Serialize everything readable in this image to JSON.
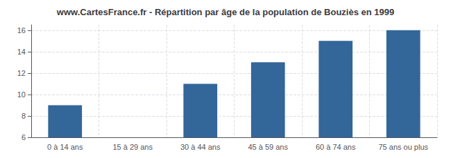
{
  "chart_data": {
    "type": "bar",
    "title": "www.CartesFrance.fr - Répartition par âge de la population de Bouziès en 1999",
    "categories": [
      "0 à 14 ans",
      "15 à 29 ans",
      "30 à 44 ans",
      "45 à 59 ans",
      "60 à 74 ans",
      "75 ans ou plus"
    ],
    "values": [
      9,
      6,
      11,
      13,
      15,
      16
    ],
    "color": "#336699",
    "ylim": [
      6,
      16.5
    ],
    "yticks": [
      6,
      8,
      10,
      12,
      14,
      16
    ],
    "grid": true
  }
}
